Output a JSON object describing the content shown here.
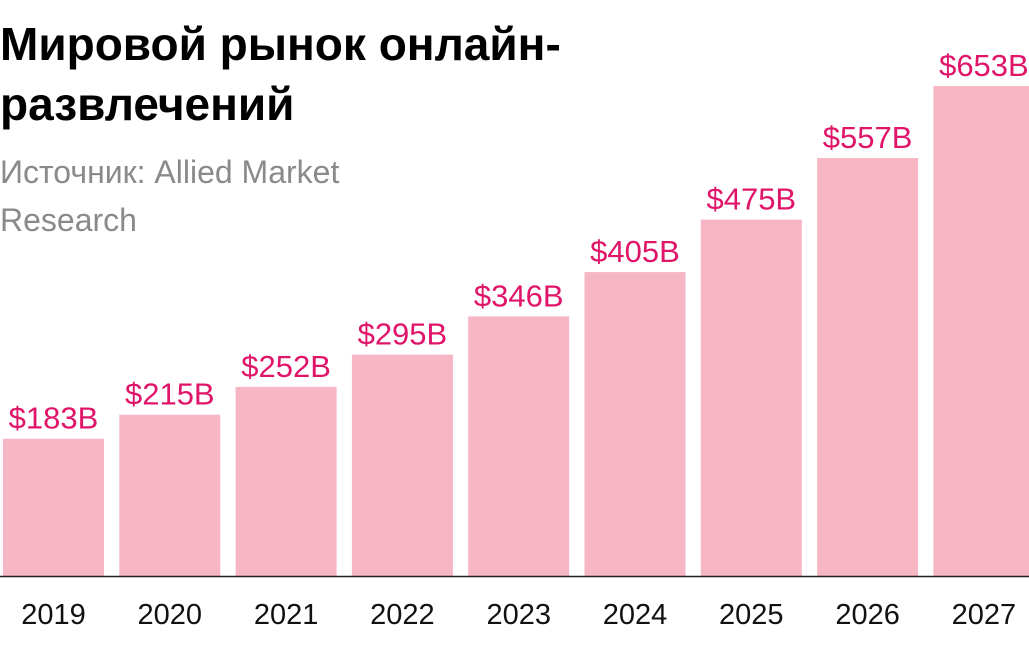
{
  "header": {
    "title": "Мировой рынок онлайн-развлечений",
    "source": "Источник: Allied Market Research"
  },
  "colors": {
    "bar": "#f7b6c4",
    "label": "#e0156a",
    "axis": "#222222",
    "tick_text": "#111111"
  },
  "chart_data": {
    "type": "bar",
    "title": "Мировой рынок онлайн-развлечений",
    "subtitle": "Источник: Allied Market Research",
    "categories": [
      "2019",
      "2020",
      "2021",
      "2022",
      "2023",
      "2024",
      "2025",
      "2026",
      "2027"
    ],
    "values": [
      183,
      215,
      252,
      295,
      346,
      405,
      475,
      557,
      653
    ],
    "value_labels": [
      "$183B",
      "$215B",
      "$252B",
      "$295B",
      "$346B",
      "$405B",
      "$475B",
      "$557B",
      "$653B"
    ],
    "unit": "B USD",
    "xlabel": "",
    "ylabel": "",
    "ylim": [
      0,
      653
    ],
    "grid": false,
    "legend": "none"
  }
}
